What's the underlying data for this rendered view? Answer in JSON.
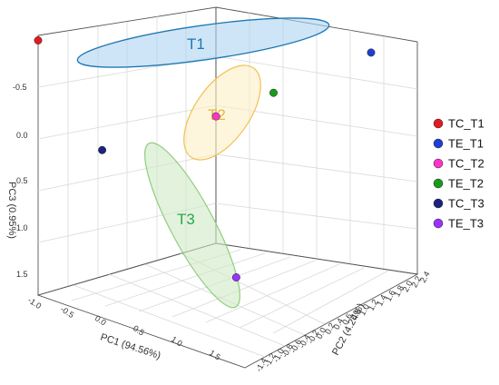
{
  "chart_data": {
    "type": "scatter",
    "title": "",
    "axes": {
      "x": {
        "label": "PC1 (94.56%)",
        "ticks": [
          "-1.0",
          "-0.5",
          "0.0",
          "0.5",
          "1.0",
          "1.5"
        ],
        "range": [
          -1.0,
          1.5
        ]
      },
      "y": {
        "label": "PC2 (4.24%)",
        "ticks": [
          "-1.4",
          "-1.2",
          "-1.0",
          "-0.8",
          "-0.6",
          "-0.4",
          "-0.2",
          "0.0",
          "0.2",
          "0.4",
          "0.6",
          "0.8",
          "1.0",
          "1.2",
          "1.4",
          "1.6",
          "1.8",
          "2.0",
          "2.2",
          "2.4"
        ],
        "range": [
          -1.4,
          2.4
        ]
      },
      "z": {
        "label": "PC3 (0.95%)",
        "ticks": [
          "-0.5",
          "0.0",
          "0.5",
          "1.0",
          "1.5"
        ],
        "range": [
          -0.8,
          1.8
        ],
        "reversed": true
      }
    },
    "grid": true,
    "legend_position": "right",
    "series": [
      {
        "name": "TC_T1",
        "color": "#e31a1c",
        "points": [
          {
            "x": -1.0,
            "y": -1.4,
            "z": -0.75
          }
        ]
      },
      {
        "name": "TE_T1",
        "color": "#1f3fd0",
        "points": [
          {
            "x": 0.9,
            "y": 2.4,
            "z": -0.75
          }
        ]
      },
      {
        "name": "TC_T2",
        "color": "#ff33cc",
        "points": [
          {
            "x": 0.55,
            "y": -0.1,
            "z": 0.07
          }
        ]
      },
      {
        "name": "TE_T2",
        "color": "#1a9a1a",
        "points": [
          {
            "x": 0.48,
            "y": 1.1,
            "z": -0.28
          }
        ]
      },
      {
        "name": "TC_T3",
        "color": "#1a237e",
        "points": [
          {
            "x": -0.1,
            "y": -1.4,
            "z": 0.45
          }
        ]
      },
      {
        "name": "TE_T3",
        "color": "#9933ff",
        "points": [
          {
            "x": 1.2,
            "y": -0.6,
            "z": 1.8
          }
        ]
      }
    ],
    "groups": [
      {
        "label": "T1",
        "color": "#1f78b4",
        "fill": "#aed4f2",
        "members": [
          "TC_T1",
          "TE_T1"
        ]
      },
      {
        "label": "T2",
        "color": "#f2c14e",
        "fill": "#fbefc4",
        "members": [
          "TC_T2",
          "TE_T2"
        ]
      },
      {
        "label": "T3",
        "color": "#2aa84a",
        "fill": "#cfe9c4",
        "members": [
          "TC_T3",
          "TE_T3"
        ]
      }
    ]
  }
}
